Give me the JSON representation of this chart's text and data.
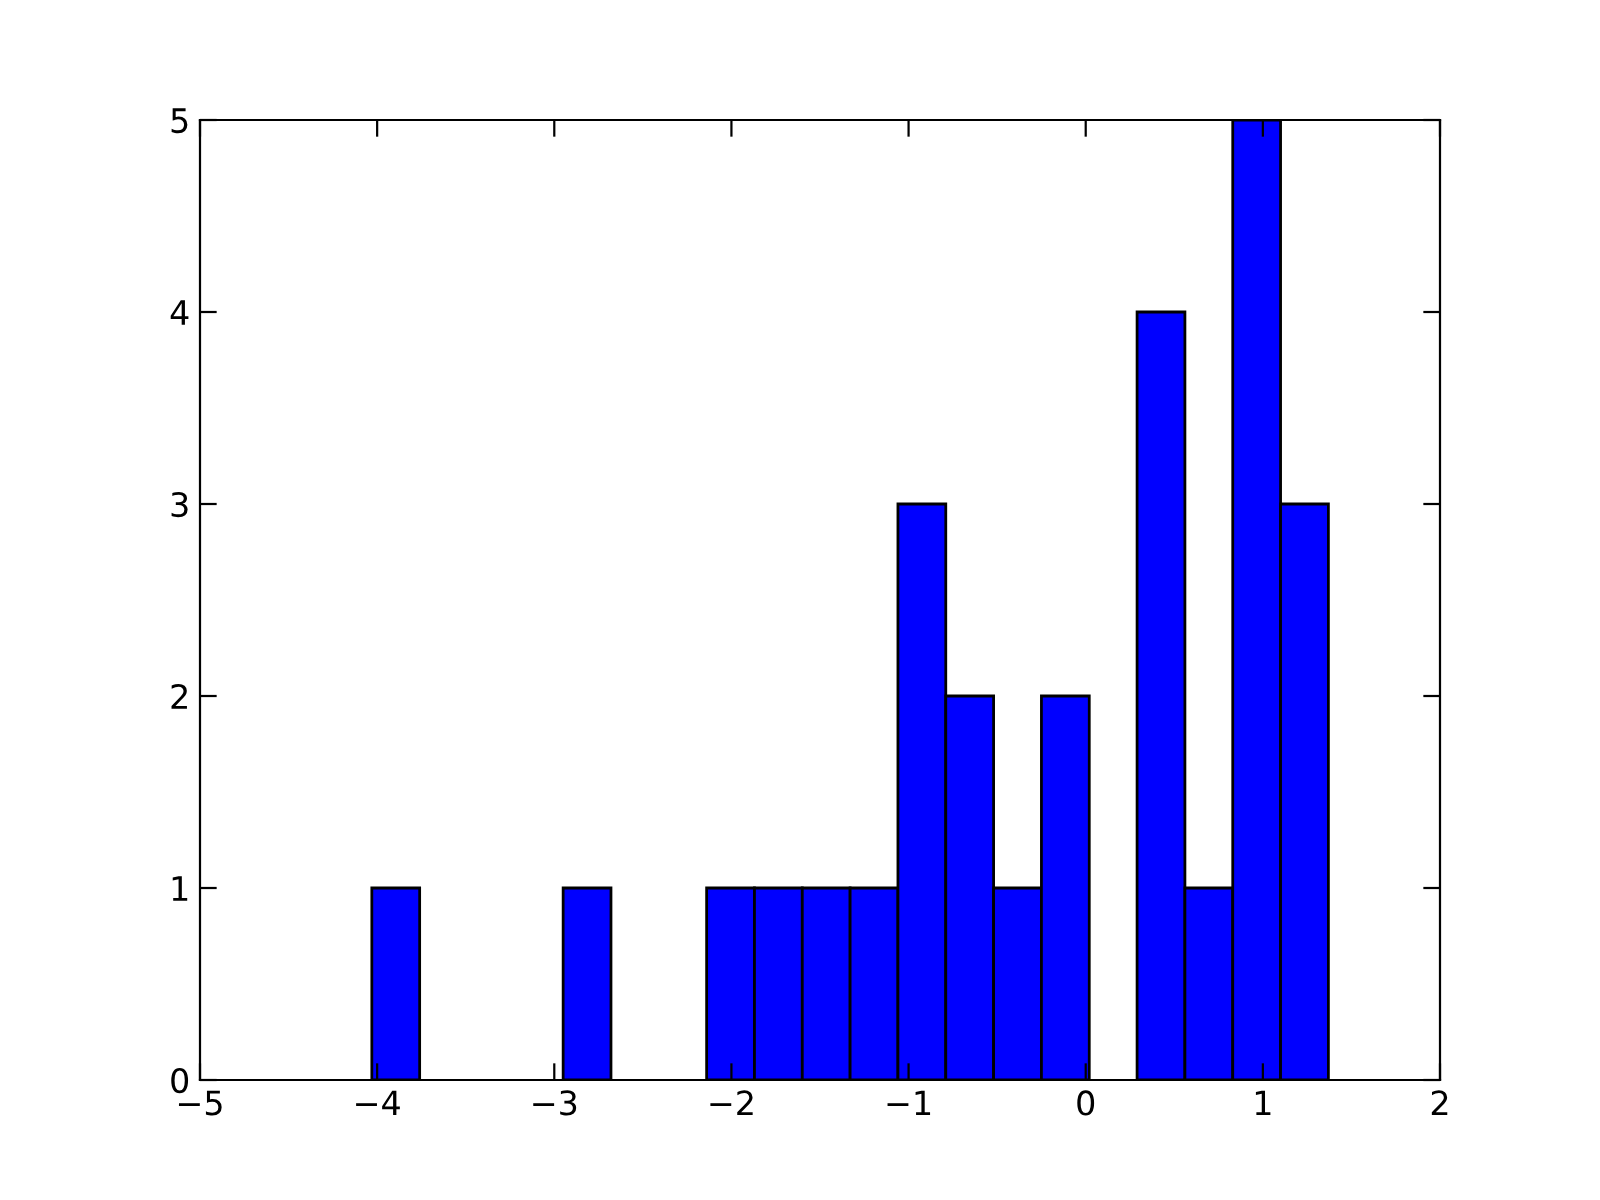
{
  "chart_data": {
    "type": "histogram",
    "bins": [
      -4.03,
      -3.76,
      -3.49,
      -3.22,
      -2.95,
      -2.68,
      -2.41,
      -2.14,
      -1.87,
      -1.6,
      -1.33,
      -1.06,
      -0.79,
      -0.52,
      -0.25,
      0.02,
      0.29,
      0.56,
      0.83,
      1.1,
      1.37
    ],
    "values": [
      1,
      0,
      0,
      0,
      1,
      0,
      0,
      1,
      1,
      1,
      1,
      3,
      2,
      1,
      2,
      0,
      4,
      1,
      5,
      3
    ],
    "color": "#0000ff",
    "xlim": [
      -5,
      2
    ],
    "xticks": [
      -5,
      -4,
      -3,
      -2,
      -1,
      0,
      1,
      2
    ],
    "ylim": [
      0,
      5
    ],
    "yticks": [
      0,
      1,
      2,
      3,
      4,
      5
    ],
    "grid": false
  }
}
